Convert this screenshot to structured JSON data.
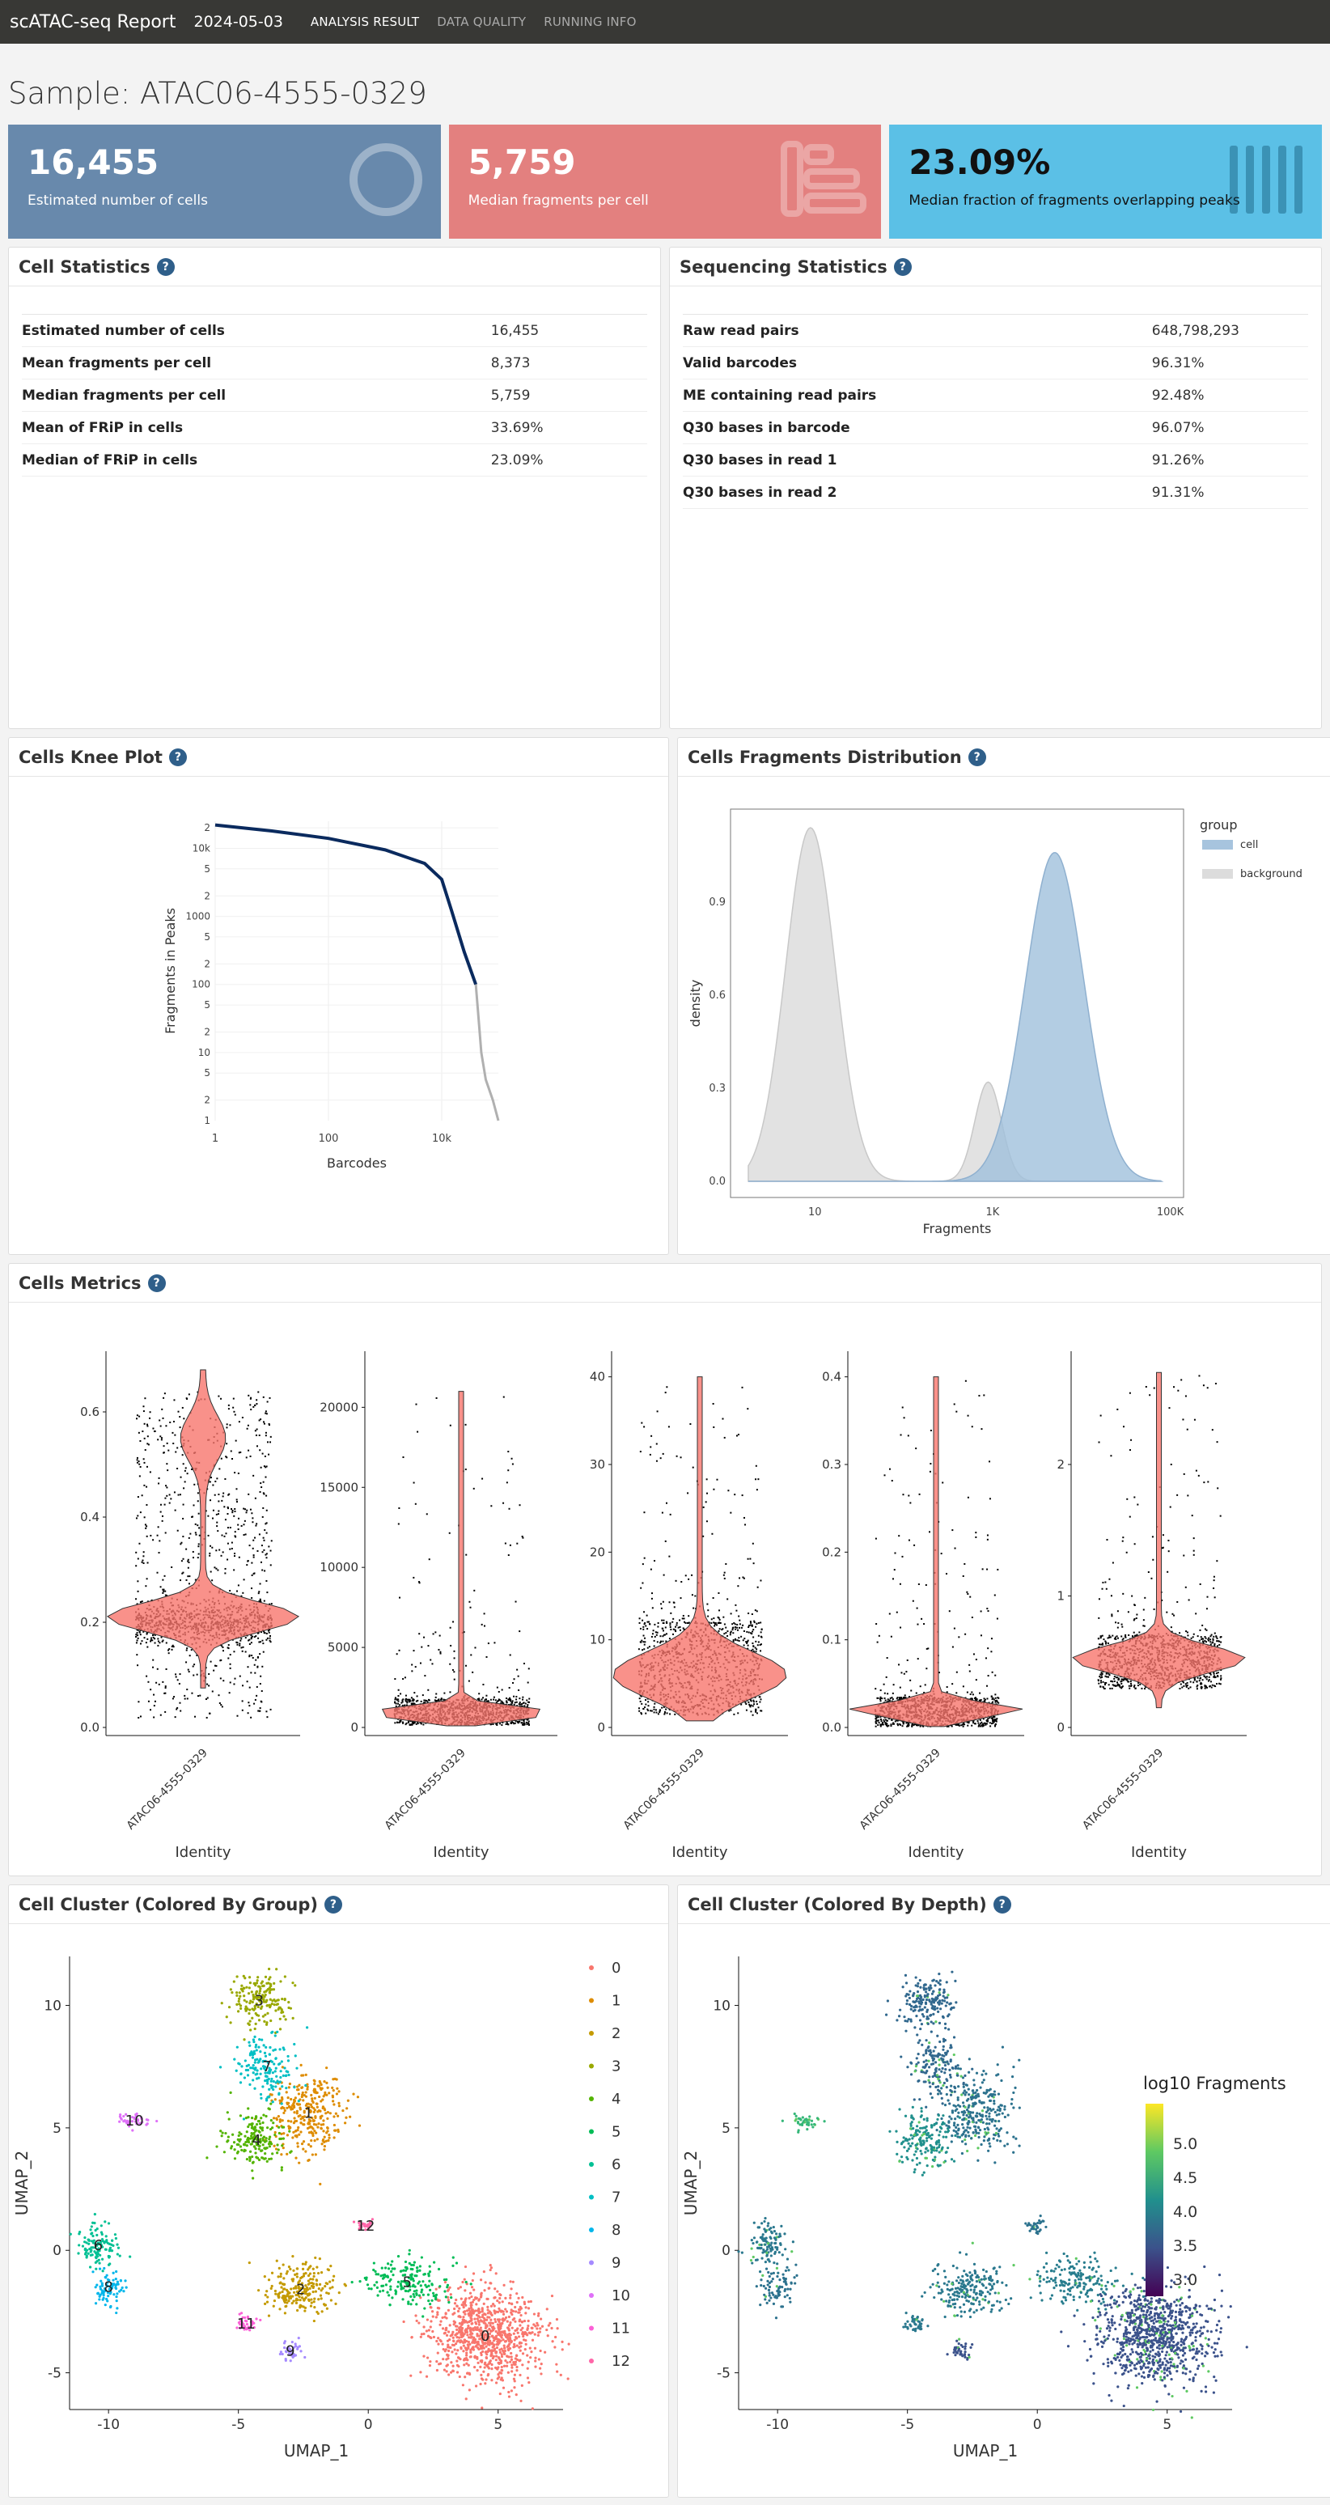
{
  "header": {
    "brand": "scATAC-seq Report",
    "date": "2024-05-03",
    "nav": [
      "ANALYSIS RESULT",
      "DATA QUALITY",
      "RUNNING INFO"
    ]
  },
  "sample_title": "Sample: ATAC06-4555-0329",
  "kpis": [
    {
      "value": "16,455",
      "label": "Estimated number of cells",
      "color": "#6889ac"
    },
    {
      "value": "5,759",
      "label": "Median fragments per cell",
      "color": "#e3807f"
    },
    {
      "value": "23.09%",
      "label": "Median fraction of fragments overlapping peaks",
      "color": "#5bc0e6"
    }
  ],
  "cell_stats": {
    "title": "Cell Statistics",
    "help": "?",
    "rows": [
      {
        "name": "Estimated number of cells",
        "value": "16,455"
      },
      {
        "name": "Mean fragments per cell",
        "value": "8,373"
      },
      {
        "name": "Median fragments per cell",
        "value": "5,759"
      },
      {
        "name": "Mean of FRiP in cells",
        "value": "33.69%"
      },
      {
        "name": "Median of FRiP in cells",
        "value": "23.09%"
      }
    ]
  },
  "seq_stats": {
    "title": "Sequencing Statistics",
    "help": "?",
    "rows": [
      {
        "name": "Raw read pairs",
        "value": "648,798,293"
      },
      {
        "name": "Valid barcodes",
        "value": "96.31%"
      },
      {
        "name": "ME containing read pairs",
        "value": "92.48%"
      },
      {
        "name": "Q30 bases in barcode",
        "value": "96.07%"
      },
      {
        "name": "Q30 bases in read 1",
        "value": "91.26%"
      },
      {
        "name": "Q30 bases in read 2",
        "value": "91.31%"
      }
    ]
  },
  "panel_titles": {
    "knee": "Cells Knee Plot",
    "frag": "Cells Fragments Distribution",
    "metrics": "Cells Metrics",
    "cluster_group": "Cell Cluster (Colored By Group)",
    "cluster_depth": "Cell Cluster (Colored By Depth)",
    "help": "?"
  },
  "chart_data": [
    {
      "type": "line",
      "xlabel": "Barcodes",
      "ylabel": "Fragments in Peaks",
      "x_scale": "log",
      "y_scale": "log",
      "x_ticks": [
        "1",
        "100",
        "10k"
      ],
      "y_ticks": [
        "2",
        "5",
        "10",
        "2",
        "5",
        "100",
        "2",
        "5",
        "1000",
        "2",
        "5",
        "10k",
        "2"
      ],
      "series": [
        {
          "color": "#0a2a5e",
          "points": [
            [
              1,
              22000
            ],
            [
              10,
              18000
            ],
            [
              100,
              14000
            ],
            [
              1000,
              9500
            ],
            [
              5000,
              6000
            ],
            [
              10000,
              3500
            ],
            [
              15000,
              1200
            ],
            [
              25000,
              300
            ],
            [
              40000,
              100
            ]
          ]
        },
        {
          "color": "#b0b0b0",
          "points": [
            [
              40000,
              100
            ],
            [
              45000,
              30
            ],
            [
              50000,
              10
            ],
            [
              60000,
              4
            ],
            [
              80000,
              2
            ],
            [
              100000,
              1
            ]
          ]
        }
      ]
    },
    {
      "type": "area",
      "xlabel": "Fragments",
      "ylabel": "density",
      "x_scale": "log",
      "x_ticks": [
        "10",
        "1K",
        "100K"
      ],
      "y_ticks": [
        "0.0",
        "0.3",
        "0.6",
        "0.9"
      ],
      "legend_title": "group",
      "legend": [
        {
          "name": "cell",
          "color": "#a7c4de"
        },
        {
          "name": "background",
          "color": "#dcdcdc"
        }
      ],
      "series": [
        {
          "name": "background",
          "peaks": [
            {
              "log10x": 0.95,
              "height": 1.14,
              "sd": 0.28
            },
            {
              "log10x": 2.95,
              "height": 0.32,
              "sd": 0.15
            }
          ]
        },
        {
          "name": "cell",
          "peaks": [
            {
              "log10x": 3.7,
              "height": 1.06,
              "sd": 0.33
            }
          ]
        }
      ]
    },
    {
      "type": "scatter",
      "subtype": "violin",
      "xlabel": "Identity",
      "category": "ATAC06-4555-0329",
      "panels": [
        {
          "y_ticks": [
            "0.0",
            "0.2",
            "0.4",
            "0.6"
          ],
          "ylim": [
            0,
            0.7
          ]
        },
        {
          "y_ticks": [
            "0",
            "5000",
            "10000",
            "15000",
            "20000"
          ],
          "ylim": [
            0,
            23000
          ]
        },
        {
          "y_ticks": [
            "0",
            "10",
            "20",
            "30",
            "40"
          ],
          "ylim": [
            0,
            42
          ]
        },
        {
          "y_ticks": [
            "0.0",
            "0.1",
            "0.2",
            "0.3",
            "0.4"
          ],
          "ylim": [
            0,
            0.42
          ]
        },
        {
          "y_ticks": [
            "0",
            "1",
            "2"
          ],
          "ylim": [
            0,
            2.8
          ]
        }
      ]
    },
    {
      "type": "scatter",
      "xlabel": "UMAP_1",
      "ylabel": "UMAP_2",
      "x_ticks": [
        "-10",
        "-5",
        "0",
        "5"
      ],
      "y_ticks": [
        "-5",
        "0",
        "5",
        "10"
      ],
      "xlim": [
        -11.5,
        7.5
      ],
      "ylim": [
        -6.5,
        12
      ],
      "clusters": [
        {
          "name": "0",
          "color": "#f8766d",
          "cx": 4.5,
          "cy": -3.5,
          "rx": 2.2,
          "ry": 2.0,
          "n": 900
        },
        {
          "name": "1",
          "color": "#de8c00",
          "cx": -2.3,
          "cy": 5.6,
          "rx": 1.4,
          "ry": 1.7,
          "n": 300
        },
        {
          "name": "2",
          "color": "#c49a00",
          "cx": -2.6,
          "cy": -1.6,
          "rx": 1.4,
          "ry": 1.0,
          "n": 220
        },
        {
          "name": "3",
          "color": "#99a800",
          "cx": -4.2,
          "cy": 10.2,
          "rx": 1.1,
          "ry": 1.1,
          "n": 180
        },
        {
          "name": "4",
          "color": "#53b400",
          "cx": -4.3,
          "cy": 4.5,
          "rx": 1.1,
          "ry": 1.1,
          "n": 180
        },
        {
          "name": "5",
          "color": "#00bc56",
          "cx": 1.5,
          "cy": -1.3,
          "rx": 1.6,
          "ry": 1.0,
          "n": 180
        },
        {
          "name": "6",
          "color": "#00c094",
          "cx": -10.4,
          "cy": 0.2,
          "rx": 0.8,
          "ry": 0.9,
          "n": 110
        },
        {
          "name": "7",
          "color": "#00bfc4",
          "cx": -3.9,
          "cy": 7.5,
          "rx": 1.0,
          "ry": 1.3,
          "n": 160
        },
        {
          "name": "8",
          "color": "#00b6eb",
          "cx": -10.0,
          "cy": -1.5,
          "rx": 0.6,
          "ry": 0.8,
          "n": 80
        },
        {
          "name": "9",
          "color": "#a58aff",
          "cx": -3.0,
          "cy": -4.1,
          "rx": 0.4,
          "ry": 0.4,
          "n": 40
        },
        {
          "name": "10",
          "color": "#df70f8",
          "cx": -9.0,
          "cy": 5.3,
          "rx": 0.6,
          "ry": 0.3,
          "n": 40
        },
        {
          "name": "11",
          "color": "#fb61d7",
          "cx": -4.7,
          "cy": -3.0,
          "rx": 0.4,
          "ry": 0.4,
          "n": 40
        },
        {
          "name": "12",
          "color": "#ff66a8",
          "cx": -0.1,
          "cy": 1.0,
          "rx": 0.3,
          "ry": 0.3,
          "n": 30
        }
      ],
      "legend": [
        "0",
        "1",
        "2",
        "3",
        "4",
        "5",
        "6",
        "7",
        "8",
        "9",
        "10",
        "11",
        "12"
      ]
    },
    {
      "type": "scatter",
      "xlabel": "UMAP_1",
      "ylabel": "UMAP_2",
      "x_ticks": [
        "-10",
        "-5",
        "0",
        "5"
      ],
      "y_ticks": [
        "-5",
        "0",
        "5",
        "10"
      ],
      "xlim": [
        -11.5,
        7.5
      ],
      "ylim": [
        -6.5,
        12
      ],
      "legend_title": "log10 Fragments",
      "colorbar_ticks": [
        "3.0",
        "3.5",
        "4.0",
        "4.5",
        "5.0"
      ]
    }
  ]
}
